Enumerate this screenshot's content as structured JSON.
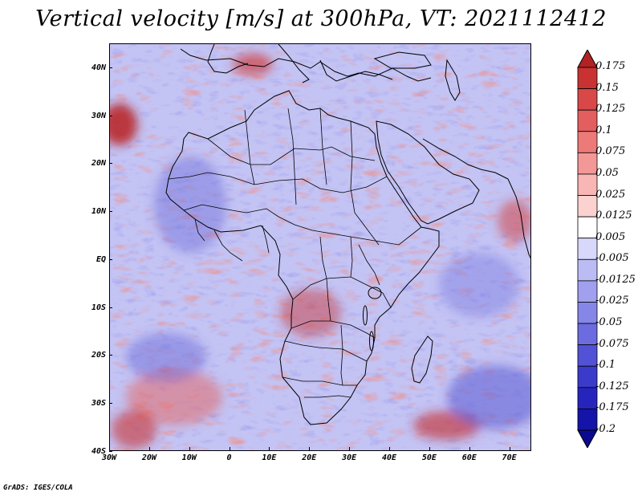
{
  "title": "Vertical velocity [m/s] at 300hPa, VT: 2021112412",
  "footer": "GrADS: IGES/COLA",
  "map": {
    "type": "map",
    "variable": "Vertical velocity",
    "units": "m/s",
    "level": "300hPa",
    "valid_time": "2021112412",
    "lon_range": [
      -30,
      75
    ],
    "lat_range": [
      -40,
      45
    ],
    "lat_labels": [
      {
        "label": "40N",
        "value": 40
      },
      {
        "label": "30N",
        "value": 30
      },
      {
        "label": "20N",
        "value": 20
      },
      {
        "label": "10N",
        "value": 10
      },
      {
        "label": "EQ",
        "value": 0
      },
      {
        "label": "10S",
        "value": -10
      },
      {
        "label": "20S",
        "value": -20
      },
      {
        "label": "30S",
        "value": -30
      },
      {
        "label": "40S",
        "value": -40
      }
    ],
    "lon_labels": [
      {
        "label": "30W",
        "value": -30
      },
      {
        "label": "20W",
        "value": -20
      },
      {
        "label": "10W",
        "value": -10
      },
      {
        "label": "0",
        "value": 0
      },
      {
        "label": "10E",
        "value": 10
      },
      {
        "label": "20E",
        "value": 20
      },
      {
        "label": "30E",
        "value": 30
      },
      {
        "label": "40E",
        "value": 40
      },
      {
        "label": "50E",
        "value": 50
      },
      {
        "label": "60E",
        "value": 60
      },
      {
        "label": "70E",
        "value": 70
      }
    ]
  },
  "colorbar": {
    "labels": [
      "0.175",
      "0.15",
      "0.125",
      "0.1",
      "0.075",
      "0.05",
      "0.025",
      "0.0125",
      "0.005",
      "-0.005",
      "-0.0125",
      "-0.025",
      "-0.05",
      "-0.075",
      "-0.1",
      "-0.125",
      "-0.175",
      "-0.2"
    ],
    "colors": [
      "#b22222",
      "#c83232",
      "#d84848",
      "#e35e5e",
      "#ec7a78",
      "#f39896",
      "#f8b6b4",
      "#fbd2d0",
      "#ffffff",
      "#d8d8fb",
      "#bcbcf5",
      "#a0a0ef",
      "#8686e8",
      "#6c6ce0",
      "#5252d6",
      "#3a3acb",
      "#2525bd",
      "#1414a8",
      "#0a0a90"
    ],
    "top_arrow_color": "#a31616",
    "bottom_arrow_color": "#0a0a8a"
  },
  "colors": {
    "positive": "#d64040",
    "negative": "#5c5cd8",
    "coastline": "#000000"
  }
}
